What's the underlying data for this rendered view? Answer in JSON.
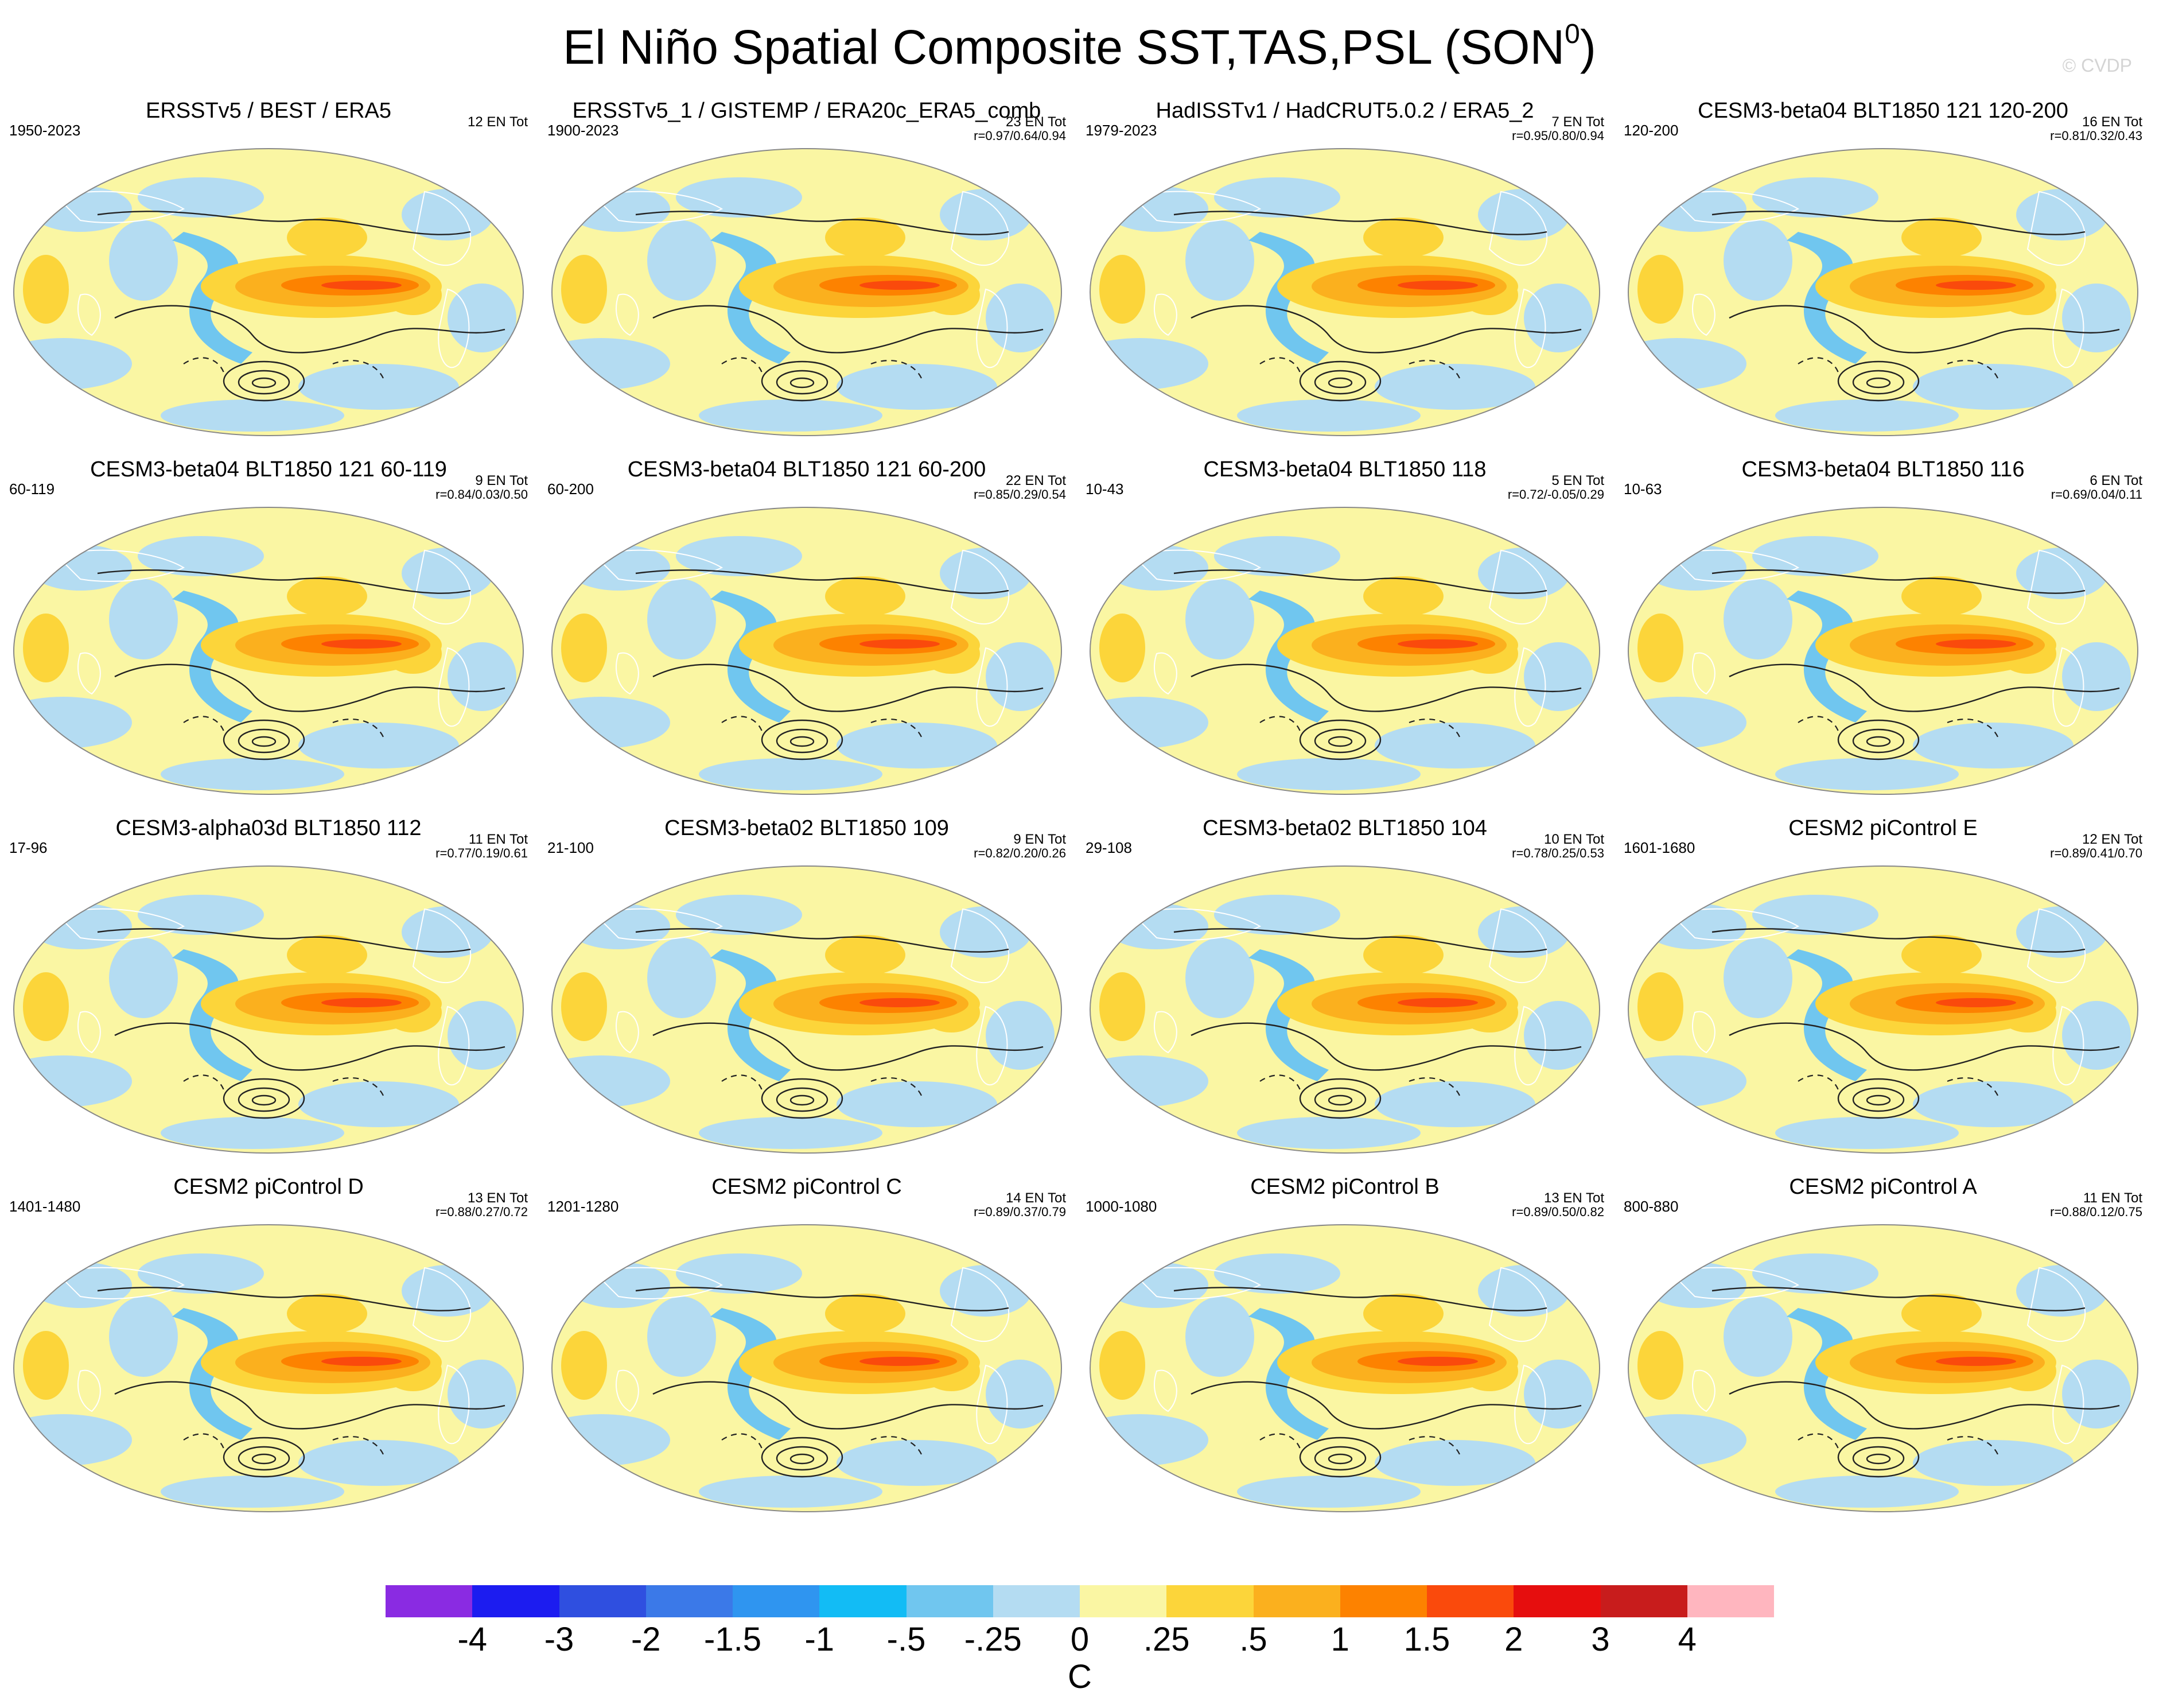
{
  "header": {
    "title_main": "El Niño Spatial Composite SST,TAS,PSL (SON",
    "title_sup": "0",
    "title_end": ")",
    "credit": "© CVDP"
  },
  "panels": [
    {
      "title": "ERSSTv5 / BEST / ERA5",
      "years": "1950-2023",
      "en": "12 EN Tot",
      "r": ""
    },
    {
      "title": "ERSSTv5_1 / GISTEMP / ERA20c_ERA5_comb",
      "years": "1900-2023",
      "en": "23 EN Tot",
      "r": "r=0.97/0.64/0.94"
    },
    {
      "title": "HadISSTv1 / HadCRUT5.0.2 / ERA5_2",
      "years": "1979-2023",
      "en": "7 EN Tot",
      "r": "r=0.95/0.80/0.94"
    },
    {
      "title": "CESM3-beta04 BLT1850 121 120-200",
      "years": "120-200",
      "en": "16 EN Tot",
      "r": "r=0.81/0.32/0.43"
    },
    {
      "title": "CESM3-beta04 BLT1850 121 60-119",
      "years": "60-119",
      "en": "9 EN Tot",
      "r": "r=0.84/0.03/0.50"
    },
    {
      "title": "CESM3-beta04 BLT1850 121 60-200",
      "years": "60-200",
      "en": "22 EN Tot",
      "r": "r=0.85/0.29/0.54"
    },
    {
      "title": "CESM3-beta04 BLT1850 118",
      "years": "10-43",
      "en": "5 EN Tot",
      "r": "r=0.72/-0.05/0.29"
    },
    {
      "title": "CESM3-beta04 BLT1850 116",
      "years": "10-63",
      "en": "6 EN Tot",
      "r": "r=0.69/0.04/0.11"
    },
    {
      "title": "CESM3-alpha03d BLT1850 112",
      "years": "17-96",
      "en": "11 EN Tot",
      "r": "r=0.77/0.19/0.61"
    },
    {
      "title": "CESM3-beta02 BLT1850 109",
      "years": "21-100",
      "en": "9 EN Tot",
      "r": "r=0.82/0.20/0.26"
    },
    {
      "title": "CESM3-beta02 BLT1850 104",
      "years": "29-108",
      "en": "10 EN Tot",
      "r": "r=0.78/0.25/0.53"
    },
    {
      "title": "CESM2 piControl E",
      "years": "1601-1680",
      "en": "12 EN Tot",
      "r": "r=0.89/0.41/0.70"
    },
    {
      "title": "CESM2 piControl D",
      "years": "1401-1480",
      "en": "13 EN Tot",
      "r": "r=0.88/0.27/0.72"
    },
    {
      "title": "CESM2 piControl C",
      "years": "1201-1280",
      "en": "14 EN Tot",
      "r": "r=0.89/0.37/0.79"
    },
    {
      "title": "CESM2 piControl B",
      "years": "1000-1080",
      "en": "13 EN Tot",
      "r": "r=0.89/0.50/0.82"
    },
    {
      "title": "CESM2 piControl A",
      "years": "800-880",
      "en": "11 EN Tot",
      "r": "r=0.88/0.12/0.75"
    }
  ],
  "colorbar": {
    "colors": [
      "#8a2be2",
      "#1c1cf0",
      "#2f4fe0",
      "#3b79e8",
      "#2f95f0",
      "#12bcf5",
      "#70c6ef",
      "#b4dcf2",
      "#faf6a3",
      "#fcd53a",
      "#fbb01e",
      "#fd8200",
      "#fa4a0c",
      "#e60e0e",
      "#c81c1c",
      "#ffb6bf"
    ],
    "ticks": [
      "-4",
      "-3",
      "-2",
      "-1.5",
      "-1",
      "-.5",
      "-.25",
      "0",
      ".25",
      ".5",
      "1",
      "1.5",
      "2",
      "3",
      "4"
    ],
    "units": "C"
  },
  "chart_data": {
    "type": "heatmap",
    "title": "El Niño Spatial Composite SST,TAS,PSL (SON0)",
    "variables": [
      "SST",
      "TAS",
      "PSL"
    ],
    "season": "SON",
    "units": "C",
    "contour_levels": [
      -4,
      -3,
      -2,
      -1.5,
      -1,
      -0.5,
      -0.25,
      0,
      0.25,
      0.5,
      1,
      1.5,
      2,
      3,
      4
    ],
    "panel_count": 16,
    "pattern_correlations_sst_tas_psl": [
      {
        "panel": "ERSSTv5_1 / GISTEMP / ERA20c_ERA5_comb",
        "r": [
          0.97,
          0.64,
          0.94
        ]
      },
      {
        "panel": "HadISSTv1 / HadCRUT5.0.2 / ERA5_2",
        "r": [
          0.95,
          0.8,
          0.94
        ]
      },
      {
        "panel": "CESM3-beta04 BLT1850 121 120-200",
        "r": [
          0.81,
          0.32,
          0.43
        ]
      },
      {
        "panel": "CESM3-beta04 BLT1850 121 60-119",
        "r": [
          0.84,
          0.03,
          0.5
        ]
      },
      {
        "panel": "CESM3-beta04 BLT1850 121 60-200",
        "r": [
          0.85,
          0.29,
          0.54
        ]
      },
      {
        "panel": "CESM3-beta04 BLT1850 118",
        "r": [
          0.72,
          -0.05,
          0.29
        ]
      },
      {
        "panel": "CESM3-beta04 BLT1850 116",
        "r": [
          0.69,
          0.04,
          0.11
        ]
      },
      {
        "panel": "CESM3-alpha03d BLT1850 112",
        "r": [
          0.77,
          0.19,
          0.61
        ]
      },
      {
        "panel": "CESM3-beta02 BLT1850 109",
        "r": [
          0.82,
          0.2,
          0.26
        ]
      },
      {
        "panel": "CESM3-beta02 BLT1850 104",
        "r": [
          0.78,
          0.25,
          0.53
        ]
      },
      {
        "panel": "CESM2 piControl E",
        "r": [
          0.89,
          0.41,
          0.7
        ]
      },
      {
        "panel": "CESM2 piControl D",
        "r": [
          0.88,
          0.27,
          0.72
        ]
      },
      {
        "panel": "CESM2 piControl C",
        "r": [
          0.89,
          0.37,
          0.79
        ]
      },
      {
        "panel": "CESM2 piControl B",
        "r": [
          0.89,
          0.5,
          0.82
        ]
      },
      {
        "panel": "CESM2 piControl A",
        "r": [
          0.88,
          0.12,
          0.75
        ]
      }
    ],
    "el_nino_event_counts": [
      12,
      23,
      7,
      16,
      9,
      22,
      5,
      6,
      11,
      9,
      10,
      12,
      13,
      14,
      13,
      11
    ]
  }
}
